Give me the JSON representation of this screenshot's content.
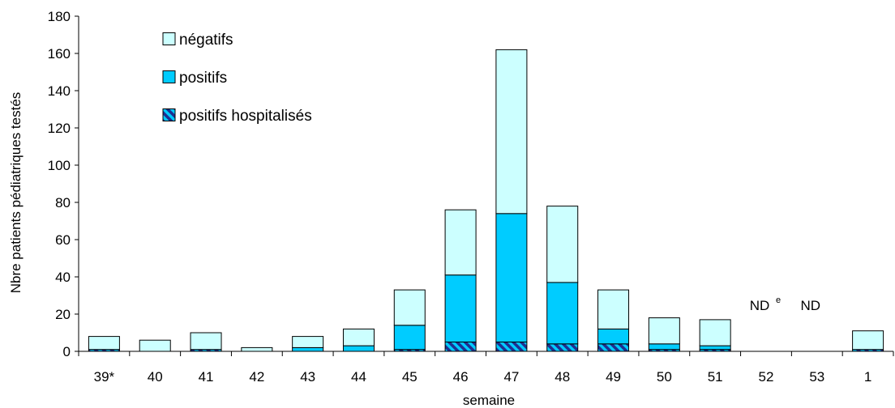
{
  "chart_data": {
    "type": "bar",
    "stacked": true,
    "title": "",
    "xlabel": "semaine",
    "ylabel": "Nbre patients pédiatriques testés",
    "ylim": [
      0,
      180
    ],
    "yticks": [
      0,
      20,
      40,
      60,
      80,
      100,
      120,
      140,
      160,
      180
    ],
    "categories": [
      "39*",
      "40",
      "41",
      "42",
      "43",
      "44",
      "45",
      "46",
      "47",
      "48",
      "49",
      "50",
      "51",
      "52",
      "53",
      "1"
    ],
    "series": [
      {
        "name": "positifs hospitalisés",
        "values": [
          1,
          0,
          1,
          0,
          0,
          0,
          1,
          5,
          5,
          4,
          4,
          1,
          1,
          0,
          0,
          1
        ],
        "color": "#1f2f8f",
        "pattern": "diagonal-stripes"
      },
      {
        "name": "positifs",
        "values": [
          0,
          0,
          0,
          0,
          2,
          3,
          13,
          36,
          69,
          33,
          8,
          3,
          2,
          0,
          0,
          0
        ],
        "color": "#00ccff"
      },
      {
        "name": "négatifs",
        "values": [
          7,
          6,
          9,
          2,
          6,
          9,
          19,
          35,
          88,
          41,
          21,
          14,
          14,
          0,
          0,
          10
        ],
        "color": "#ccffff"
      }
    ],
    "legend": {
      "position": "top-left",
      "order": [
        "négatifs",
        "positifs",
        "positifs hospitalisés"
      ]
    },
    "annotations": [
      {
        "category": "52",
        "text": "ND",
        "superscript": "e"
      },
      {
        "category": "53",
        "text": "ND",
        "superscript": ""
      }
    ],
    "grid": false
  }
}
